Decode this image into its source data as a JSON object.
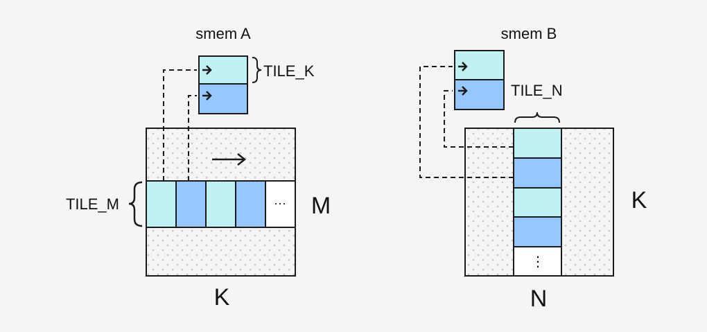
{
  "colors": {
    "background": "#f5f5f5",
    "light_tile": "#bff1f2",
    "dark_tile": "#96c8ff",
    "stroke": "#1a1a1a",
    "dot": "#c9c9c9"
  },
  "smem_a": {
    "title": "smem A",
    "tile_k_label": "TILE_K",
    "tile_m_label": "TILE_M",
    "dim_row": "M",
    "dim_col": "K",
    "ellipsis": "···"
  },
  "smem_b": {
    "title": "smem B",
    "tile_n_label": "TILE_N",
    "dim_row": "K",
    "dim_col": "N",
    "ellipsis": "⋮"
  },
  "icons": [
    "arrow-right-icon",
    "curly-brace-icon"
  ]
}
